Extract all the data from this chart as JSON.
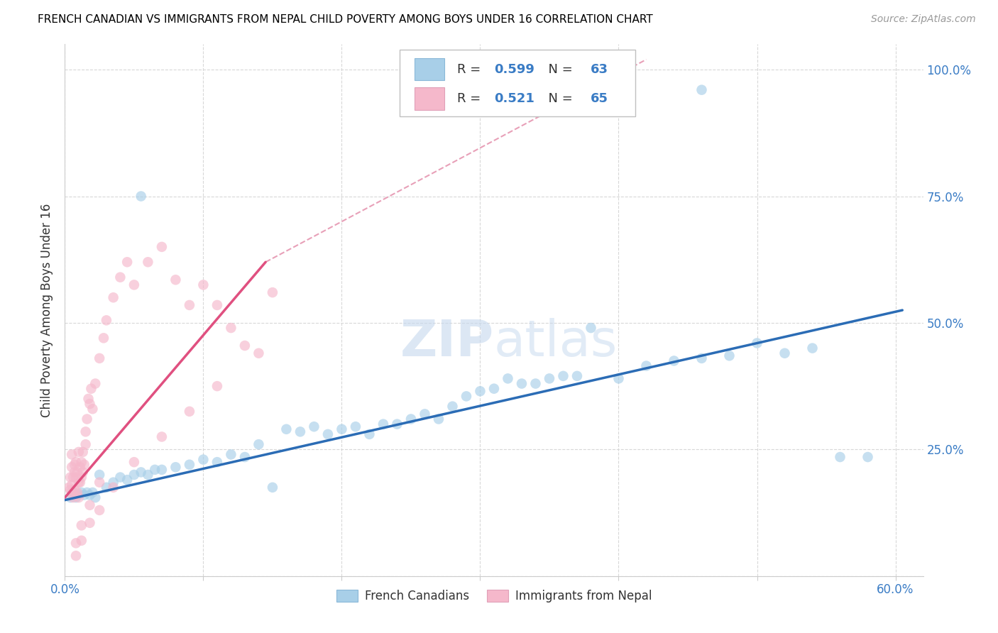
{
  "title": "FRENCH CANADIAN VS IMMIGRANTS FROM NEPAL CHILD POVERTY AMONG BOYS UNDER 16 CORRELATION CHART",
  "source": "Source: ZipAtlas.com",
  "ylabel": "Child Poverty Among Boys Under 16",
  "xlim": [
    0.0,
    0.62
  ],
  "ylim": [
    0.0,
    1.05
  ],
  "blue_R": 0.599,
  "blue_N": 63,
  "pink_R": 0.521,
  "pink_N": 65,
  "blue_color": "#a8cfe8",
  "pink_color": "#f5b8cb",
  "blue_line_color": "#2b6cb5",
  "pink_line_color": "#e05080",
  "dashed_color": "#e8a0b8",
  "legend_blue_label": "French Canadians",
  "legend_pink_label": "Immigrants from Nepal",
  "blue_scatter_x": [
    0.004,
    0.006,
    0.008,
    0.01,
    0.012,
    0.014,
    0.016,
    0.018,
    0.02,
    0.022,
    0.025,
    0.03,
    0.035,
    0.04,
    0.045,
    0.05,
    0.055,
    0.06,
    0.065,
    0.07,
    0.08,
    0.09,
    0.1,
    0.11,
    0.12,
    0.13,
    0.14,
    0.15,
    0.16,
    0.17,
    0.18,
    0.19,
    0.2,
    0.21,
    0.22,
    0.23,
    0.24,
    0.25,
    0.26,
    0.27,
    0.28,
    0.29,
    0.3,
    0.31,
    0.32,
    0.33,
    0.34,
    0.35,
    0.36,
    0.37,
    0.4,
    0.42,
    0.44,
    0.46,
    0.48,
    0.5,
    0.52,
    0.54,
    0.56,
    0.58,
    0.055,
    0.38,
    0.46
  ],
  "blue_scatter_y": [
    0.155,
    0.165,
    0.155,
    0.16,
    0.165,
    0.16,
    0.165,
    0.16,
    0.165,
    0.155,
    0.2,
    0.175,
    0.185,
    0.195,
    0.19,
    0.2,
    0.205,
    0.2,
    0.21,
    0.21,
    0.215,
    0.22,
    0.23,
    0.225,
    0.24,
    0.235,
    0.26,
    0.175,
    0.29,
    0.285,
    0.295,
    0.28,
    0.29,
    0.295,
    0.28,
    0.3,
    0.3,
    0.31,
    0.32,
    0.31,
    0.335,
    0.355,
    0.365,
    0.37,
    0.39,
    0.38,
    0.38,
    0.39,
    0.395,
    0.395,
    0.39,
    0.415,
    0.425,
    0.43,
    0.435,
    0.46,
    0.44,
    0.45,
    0.235,
    0.235,
    0.75,
    0.49,
    0.96
  ],
  "pink_scatter_x": [
    0.003,
    0.004,
    0.004,
    0.005,
    0.005,
    0.005,
    0.005,
    0.006,
    0.006,
    0.007,
    0.007,
    0.007,
    0.008,
    0.008,
    0.008,
    0.009,
    0.009,
    0.01,
    0.01,
    0.01,
    0.011,
    0.011,
    0.012,
    0.012,
    0.013,
    0.013,
    0.014,
    0.015,
    0.015,
    0.016,
    0.017,
    0.018,
    0.019,
    0.02,
    0.022,
    0.025,
    0.028,
    0.03,
    0.035,
    0.04,
    0.045,
    0.05,
    0.06,
    0.07,
    0.08,
    0.09,
    0.1,
    0.11,
    0.12,
    0.13,
    0.008,
    0.012,
    0.018,
    0.025,
    0.035,
    0.05,
    0.07,
    0.09,
    0.11,
    0.008,
    0.012,
    0.018,
    0.025,
    0.14,
    0.15
  ],
  "pink_scatter_y": [
    0.175,
    0.17,
    0.195,
    0.165,
    0.18,
    0.215,
    0.24,
    0.155,
    0.195,
    0.17,
    0.205,
    0.22,
    0.16,
    0.195,
    0.225,
    0.165,
    0.205,
    0.155,
    0.185,
    0.245,
    0.185,
    0.215,
    0.195,
    0.225,
    0.205,
    0.245,
    0.22,
    0.285,
    0.26,
    0.31,
    0.35,
    0.34,
    0.37,
    0.33,
    0.38,
    0.43,
    0.47,
    0.505,
    0.55,
    0.59,
    0.62,
    0.575,
    0.62,
    0.65,
    0.585,
    0.535,
    0.575,
    0.535,
    0.49,
    0.455,
    0.04,
    0.07,
    0.105,
    0.13,
    0.175,
    0.225,
    0.275,
    0.325,
    0.375,
    0.065,
    0.1,
    0.14,
    0.185,
    0.44,
    0.56
  ],
  "blue_line_x": [
    0.0,
    0.605
  ],
  "blue_line_y": [
    0.15,
    0.525
  ],
  "pink_line_x": [
    0.0,
    0.145
  ],
  "pink_line_y": [
    0.155,
    0.62
  ],
  "dashed_line_x": [
    0.145,
    0.42
  ],
  "dashed_line_y": [
    0.62,
    1.02
  ],
  "watermark": "ZIPatlas"
}
